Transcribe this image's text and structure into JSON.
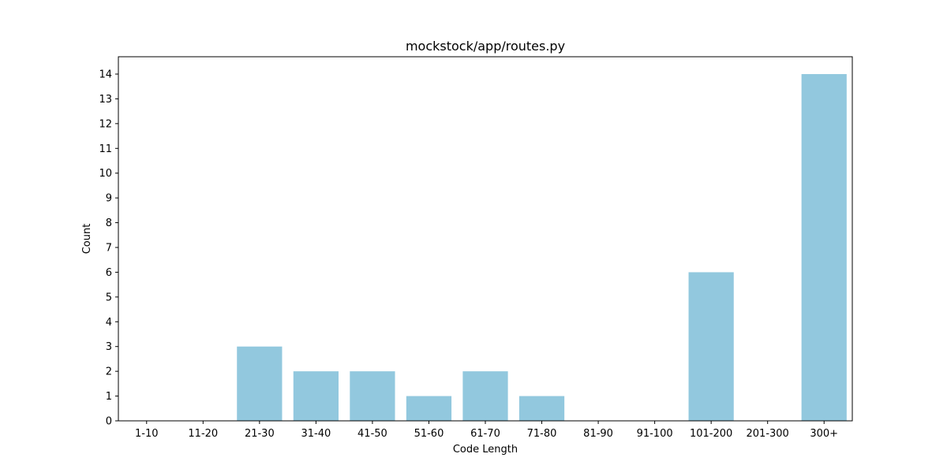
{
  "chart_data": {
    "type": "bar",
    "title": "mockstock/app/routes.py",
    "xlabel": "Code Length",
    "ylabel": "Count",
    "categories": [
      "1-10",
      "11-20",
      "21-30",
      "31-40",
      "41-50",
      "51-60",
      "61-70",
      "71-80",
      "81-90",
      "91-100",
      "101-200",
      "201-300",
      "300+"
    ],
    "values": [
      0,
      0,
      3,
      2,
      2,
      1,
      2,
      1,
      0,
      0,
      6,
      0,
      14
    ],
    "ylim": [
      0,
      14.7
    ],
    "yticks": [
      0,
      1,
      2,
      3,
      4,
      5,
      6,
      7,
      8,
      9,
      10,
      11,
      12,
      13,
      14
    ],
    "grid": false,
    "colors": {
      "bar": "#92c8de"
    }
  }
}
